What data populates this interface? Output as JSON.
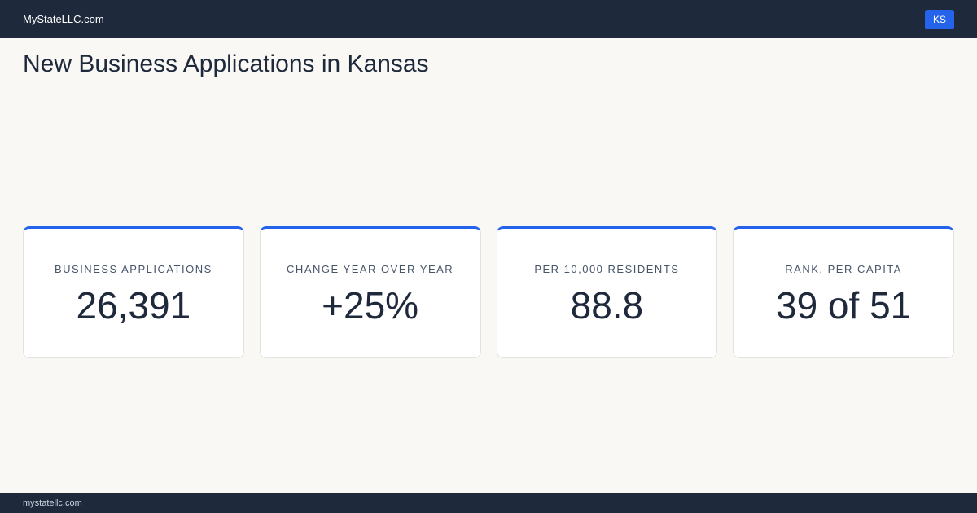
{
  "header": {
    "site": "MyStateLLC.com",
    "badge": "KS"
  },
  "title": "New Business Applications in Kansas",
  "cards": [
    {
      "label": "BUSINESS APPLICATIONS",
      "value": "26,391"
    },
    {
      "label": "CHANGE YEAR OVER YEAR",
      "value": "+25%"
    },
    {
      "label": "PER 10,000 RESIDENTS",
      "value": "88.8"
    },
    {
      "label": "RANK, PER CAPITA",
      "value": "39 of 51"
    }
  ],
  "footer": "mystatellc.com"
}
